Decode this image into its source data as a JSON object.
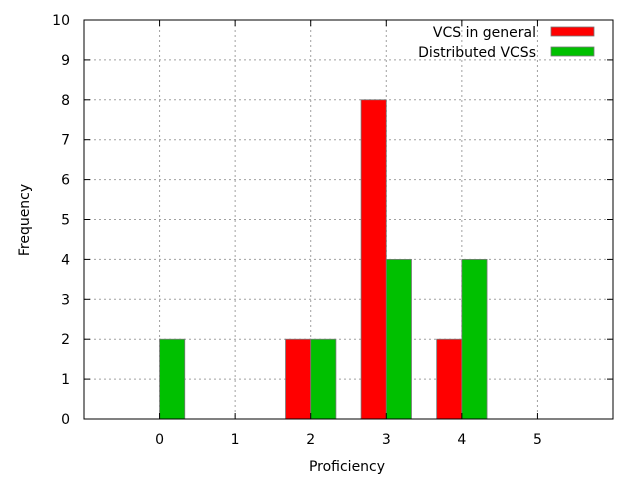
{
  "chart_data": {
    "type": "bar",
    "xlabel": "Proficiency",
    "ylabel": "Frequency",
    "ylim": [
      0,
      10
    ],
    "xlim": [
      -1,
      6
    ],
    "yticks": [
      "0",
      "1",
      "2",
      "3",
      "4",
      "5",
      "6",
      "7",
      "8",
      "9",
      "10"
    ],
    "xticks": [
      "0",
      "1",
      "2",
      "3",
      "4",
      "5"
    ],
    "grid": true,
    "legend_position": "top-right",
    "categories": [
      0,
      1,
      2,
      3,
      4,
      5
    ],
    "series": [
      {
        "name": "VCS in general",
        "color": "#ff0000",
        "values": [
          0,
          0,
          2,
          8,
          2,
          0
        ]
      },
      {
        "name": "Distributed VCSs",
        "color": "#00c000",
        "values": [
          2,
          0,
          2,
          4,
          4,
          0
        ]
      }
    ]
  }
}
